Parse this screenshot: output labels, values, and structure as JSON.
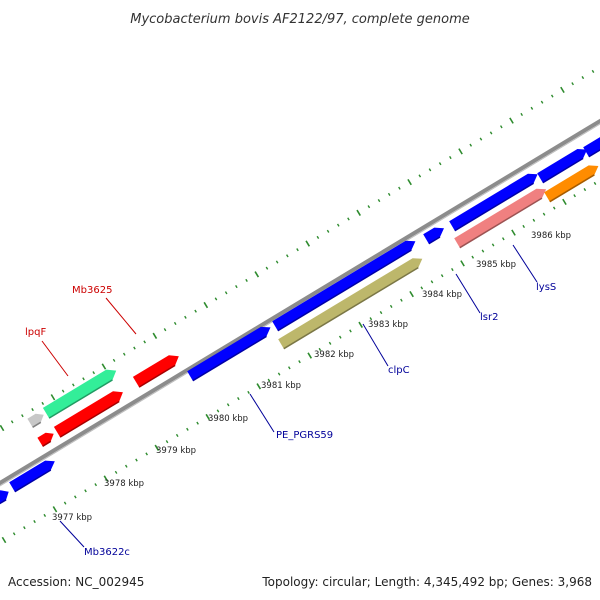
{
  "title": "Mycobacterium bovis AF2122/97, complete genome",
  "footer": {
    "accession": "Accession: NC_002945",
    "summary": "Topology: circular; Length: 4,345,492 bp; Genes: 3,968"
  },
  "colors": {
    "backbone": "#8c8c8c",
    "tick": "#2e8b2e",
    "forward_cds": "#ff0000",
    "reverse_cds": "#0000ff",
    "gray_feature": "#c8c8c8",
    "green_feature": "#33ee99",
    "olive_feature": "#bdb76b",
    "pink_feature": "#f08080",
    "orange_feature": "#ff8c00",
    "label_red": "#cc0000",
    "label_blue": "#000099"
  },
  "ruler": {
    "unit": "kbp",
    "positions": [
      3977,
      3978,
      3979,
      3980,
      3981,
      3982,
      3983,
      3984,
      3985,
      3986
    ],
    "labels": [
      "3977 kbp",
      "3978 kbp",
      "3979 kbp",
      "3980 kbp",
      "3981 kbp",
      "3982 kbp",
      "3983 kbp",
      "3984 kbp",
      "3985 kbp",
      "3986 kbp"
    ]
  },
  "gene_labels": [
    {
      "text": "lpqF",
      "color": "#cc0000"
    },
    {
      "text": "Mb3625",
      "color": "#cc0000"
    },
    {
      "text": "PE_PGRS59",
      "color": "#000099"
    },
    {
      "text": "clpC",
      "color": "#000099"
    },
    {
      "text": "lsr2",
      "color": "#000099"
    },
    {
      "text": "lysS",
      "color": "#000099"
    },
    {
      "text": "Mb3622c",
      "color": "#000099"
    }
  ]
}
